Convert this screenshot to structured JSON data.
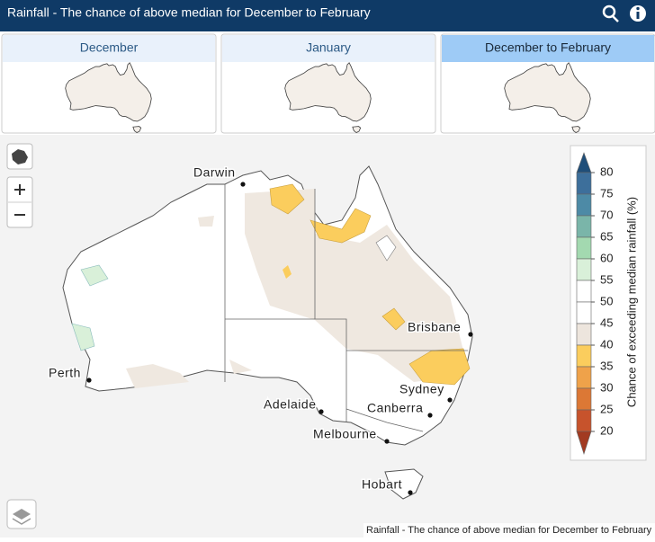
{
  "header": {
    "title": "Rainfall - The chance of above median for December to February"
  },
  "tabs": [
    {
      "label": "December",
      "selected": false
    },
    {
      "label": "January",
      "selected": false
    },
    {
      "label": "December to February",
      "selected": true
    }
  ],
  "map": {
    "cities": [
      "Darwin",
      "Brisbane",
      "Perth",
      "Sydney",
      "Adelaide",
      "Canberra",
      "Melbourne",
      "Hobart"
    ]
  },
  "legend": {
    "title": "Chance of exceeding median rainfall (%)",
    "ticks": [
      80,
      75,
      70,
      65,
      60,
      55,
      50,
      45,
      40,
      35,
      30,
      25,
      20
    ],
    "colors": [
      "#1f4e79",
      "#3d6f9b",
      "#4d8aa6",
      "#7ab5a9",
      "#a3d9b0",
      "#d9f0d9",
      "#ffffff",
      "#ffffff",
      "#ede5dd",
      "#fbcd5d",
      "#efa24a",
      "#dc7835",
      "#c7532c",
      "#a23a21"
    ]
  },
  "attribution": "Rainfall - The chance of above median for December to February"
}
